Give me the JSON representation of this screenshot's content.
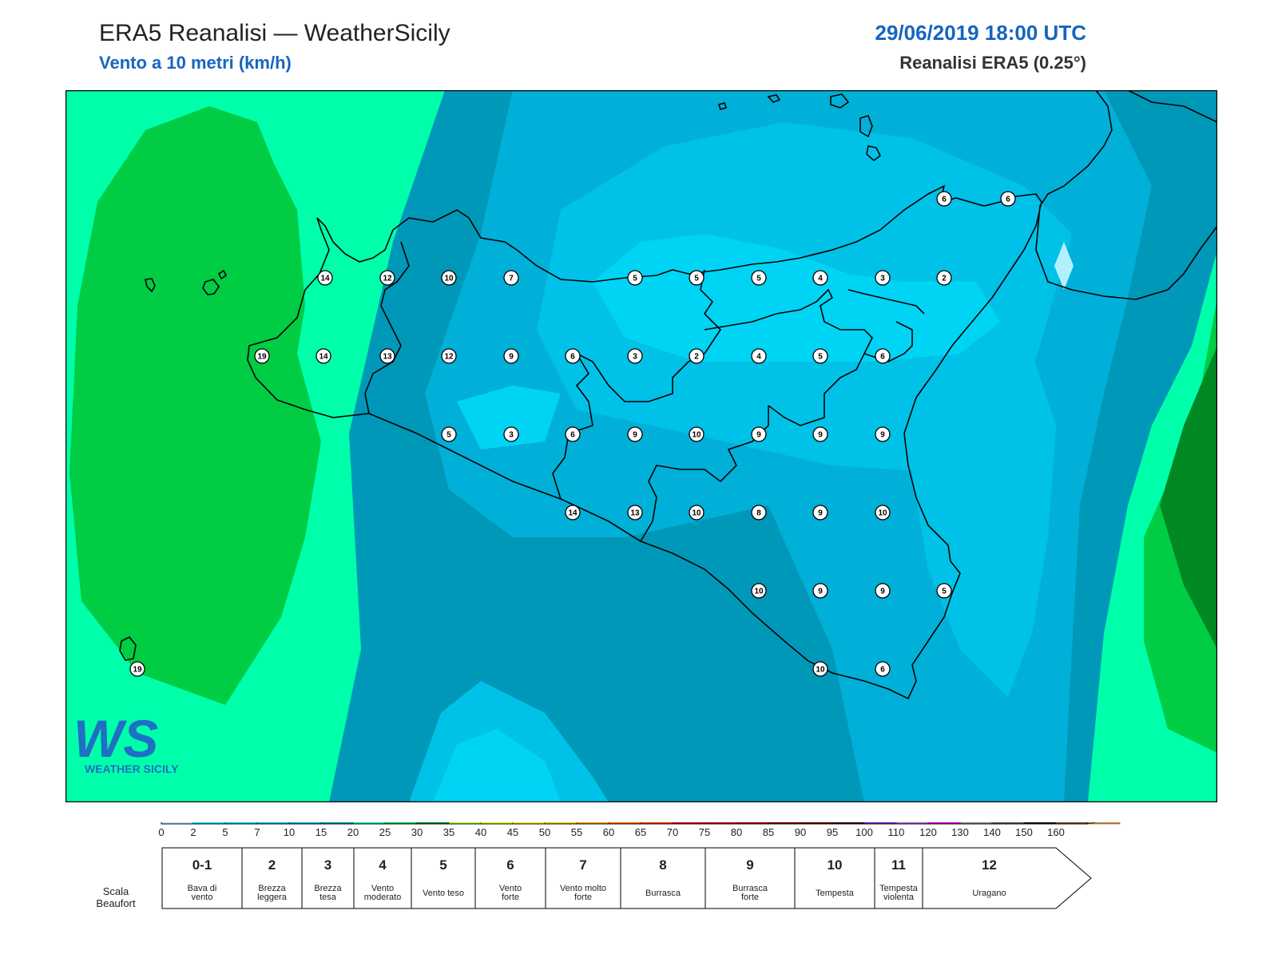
{
  "header": {
    "title": "ERA5 Reanalisi — WeatherSicily",
    "subtitle": "Vento a 10 metri (km/h)",
    "datetime": "29/06/2019 18:00 UTC",
    "source": "Reanalisi ERA5 (0.25°)"
  },
  "logo": {
    "text": "WS",
    "name": "WEATHER SICILY"
  },
  "stations": [
    {
      "value": 6
    },
    {
      "value": 6
    },
    {
      "value": 14
    },
    {
      "value": 12
    },
    {
      "value": 10
    },
    {
      "value": 7
    },
    {
      "value": 5
    },
    {
      "value": 5
    },
    {
      "value": 5
    },
    {
      "value": 4
    },
    {
      "value": 3
    },
    {
      "value": 2
    },
    {
      "value": 19
    },
    {
      "value": 14
    },
    {
      "value": 13
    },
    {
      "value": 12
    },
    {
      "value": 9
    },
    {
      "value": 6
    },
    {
      "value": 3
    },
    {
      "value": 2
    },
    {
      "value": 4
    },
    {
      "value": 5
    },
    {
      "value": 6
    },
    {
      "value": 5
    },
    {
      "value": 3
    },
    {
      "value": 6
    },
    {
      "value": 9
    },
    {
      "value": 10
    },
    {
      "value": 9
    },
    {
      "value": 9
    },
    {
      "value": 9
    },
    {
      "value": 14
    },
    {
      "value": 13
    },
    {
      "value": 10
    },
    {
      "value": 8
    },
    {
      "value": 9
    },
    {
      "value": 10
    },
    {
      "value": 10
    },
    {
      "value": 9
    },
    {
      "value": 9
    },
    {
      "value": 5
    },
    {
      "value": 19
    },
    {
      "value": 10
    },
    {
      "value": 6
    }
  ],
  "colorbar": {
    "colors": [
      "#b3f0ff",
      "#00e5ff",
      "#00d4f5",
      "#00c2e8",
      "#00b0d8",
      "#0098b8",
      "#00ffaa",
      "#00cc44",
      "#008822",
      "#c0ff33",
      "#e0ff00",
      "#ffee00",
      "#ffcc00",
      "#ff9900",
      "#ff6600",
      "#ff3300",
      "#ee0000",
      "#cc0022",
      "#aa0011",
      "#880000",
      "#660000",
      "#440000",
      "#7722cc",
      "#bb55dd",
      "#dd00dd",
      "#888888",
      "#555555",
      "#111111",
      "#884422",
      "#cc8844"
    ],
    "ticks": [
      "0",
      "2",
      "5",
      "7",
      "10",
      "15",
      "20",
      "25",
      "30",
      "35",
      "40",
      "45",
      "50",
      "55",
      "60",
      "65",
      "70",
      "75",
      "80",
      "85",
      "90",
      "95",
      "100",
      "110",
      "120",
      "130",
      "140",
      "150",
      "160"
    ]
  },
  "beaufort": {
    "label": "Scala Beaufort",
    "classes": [
      {
        "num": "0-1",
        "desc": "Bava di vento"
      },
      {
        "num": "2",
        "desc": "Brezza leggera"
      },
      {
        "num": "3",
        "desc": "Brezza tesa"
      },
      {
        "num": "4",
        "desc": "Vento moderato"
      },
      {
        "num": "5",
        "desc": "Vento teso"
      },
      {
        "num": "6",
        "desc": "Vento forte"
      },
      {
        "num": "7",
        "desc": "Vento molto forte"
      },
      {
        "num": "8",
        "desc": "Burrasca"
      },
      {
        "num": "9",
        "desc": "Burrasca forte"
      },
      {
        "num": "10",
        "desc": "Tempesta"
      },
      {
        "num": "11",
        "desc": "Tempesta violenta"
      },
      {
        "num": "12",
        "desc": "Uragano"
      }
    ]
  }
}
